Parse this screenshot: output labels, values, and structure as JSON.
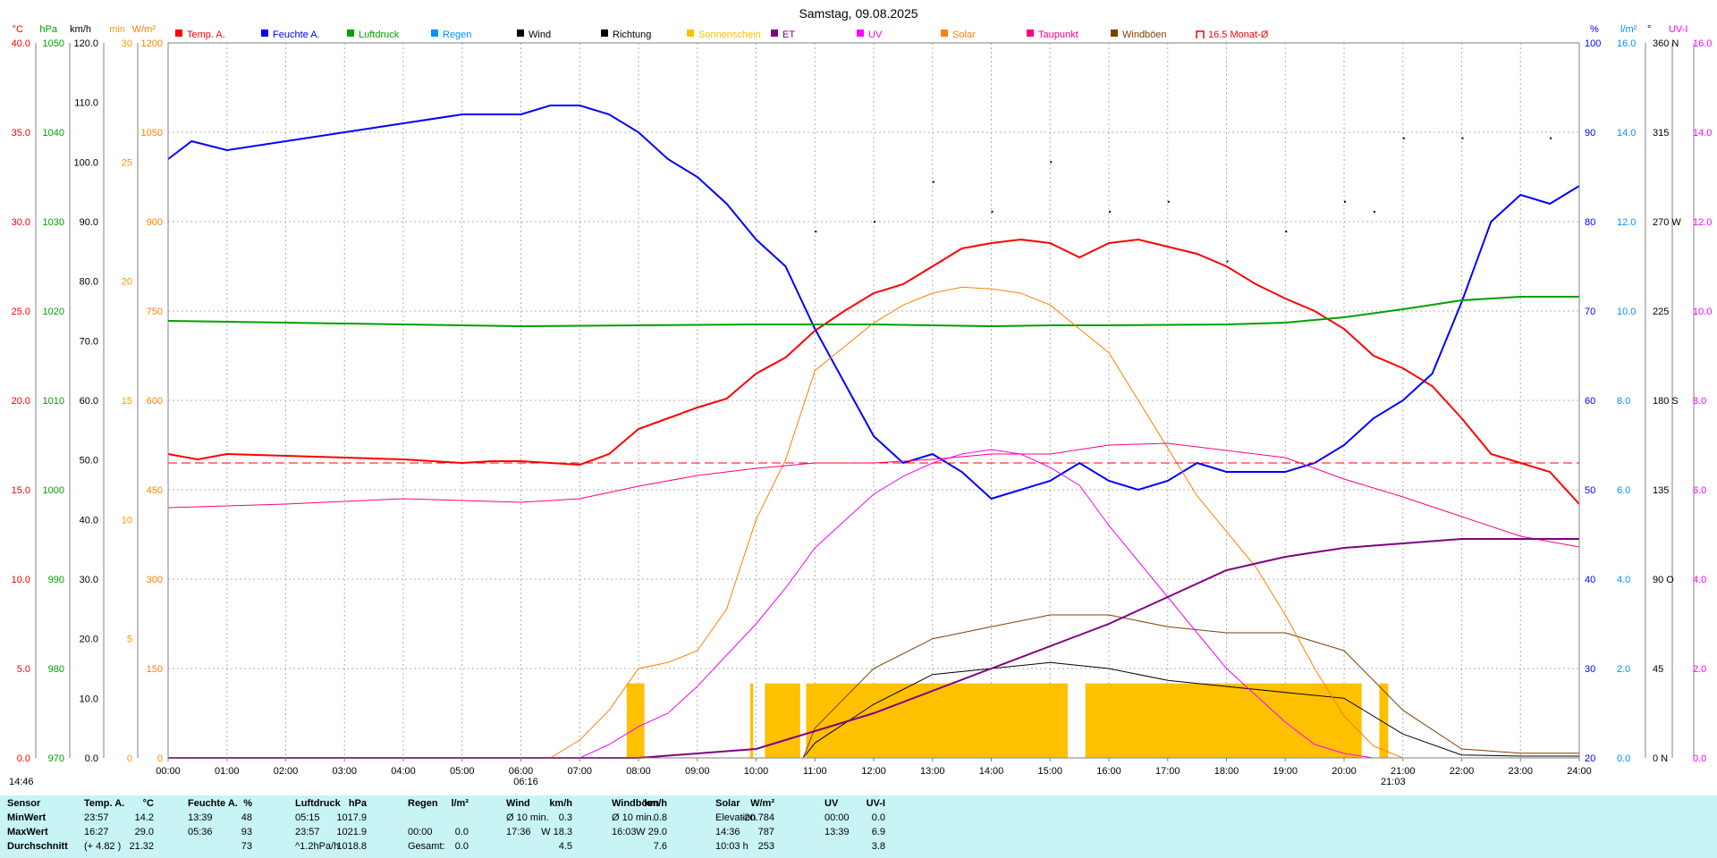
{
  "chart_data": {
    "type": "line",
    "title": "Samstag, 09.08.2025",
    "x_range": [
      "00:00",
      "24:00"
    ],
    "x_ticks": [
      "00:00",
      "01:00",
      "02:00",
      "03:00",
      "04:00",
      "05:00",
      "06:00",
      "07:00",
      "08:00",
      "09:00",
      "10:00",
      "11:00",
      "12:00",
      "13:00",
      "14:00",
      "15:00",
      "16:00",
      "17:00",
      "18:00",
      "19:00",
      "20:00",
      "21:00",
      "22:00",
      "23:00",
      "24:00"
    ],
    "legend": [
      {
        "name": "Temp. A.",
        "color": "#ff0000"
      },
      {
        "name": "Feuchte A.",
        "color": "#0000ff"
      },
      {
        "name": "Luftdruck",
        "color": "#00a000"
      },
      {
        "name": "Regen",
        "color": "#0090ff"
      },
      {
        "name": "Wind",
        "color": "#000000"
      },
      {
        "name": "Richtung",
        "color": "#000000"
      },
      {
        "name": "Sonnenschein",
        "color": "#ffc000"
      },
      {
        "name": "ET",
        "color": "#800080"
      },
      {
        "name": "UV",
        "color": "#ff00ff"
      },
      {
        "name": "Solar",
        "color": "#ff8000"
      },
      {
        "name": "Taupunkt",
        "color": "#ff0080"
      },
      {
        "name": "Windböen",
        "color": "#804000"
      },
      {
        "name": "16.5 Monat-Ø",
        "color": "#ff0000"
      }
    ],
    "left_axes": [
      {
        "unit": "°C",
        "color": "#ff0000",
        "ticks": [
          "40.0",
          "35.0",
          "30.0",
          "25.0",
          "20.0",
          "15.0",
          "10.0",
          "5.0",
          "0.0"
        ]
      },
      {
        "unit": "hPa",
        "color": "#00a000",
        "ticks": [
          "1050",
          "1040",
          "1030",
          "1020",
          "1010",
          "1000",
          "990",
          "980",
          "970"
        ]
      },
      {
        "unit": "km/h",
        "color": "#000000",
        "ticks": [
          "120.0",
          "110.0",
          "100.0",
          "90.0",
          "80.0",
          "70.0",
          "60.0",
          "50.0",
          "40.0",
          "30.0",
          "20.0",
          "10.0",
          "0.0"
        ]
      },
      {
        "unit": "min",
        "color": "#ff9900",
        "ticks": [
          "30",
          "25",
          "20",
          "15",
          "10",
          "5",
          "0"
        ]
      },
      {
        "unit": "W/m²",
        "color": "#ff8000",
        "ticks": [
          "1200",
          "1050",
          "900",
          "750",
          "600",
          "450",
          "300",
          "150",
          "0"
        ]
      }
    ],
    "right_axes": [
      {
        "unit": "%",
        "color": "#0000ff",
        "ticks": [
          "100",
          "90",
          "80",
          "70",
          "60",
          "50",
          "40",
          "30",
          "20"
        ]
      },
      {
        "unit": "l/m²",
        "color": "#0090ff",
        "ticks": [
          "16.0",
          "14.0",
          "12.0",
          "10.0",
          "8.0",
          "6.0",
          "4.0",
          "2.0",
          "0.0"
        ]
      },
      {
        "unit": "°",
        "color": "#000000",
        "ticks": [
          "360 N",
          "315",
          "270 W",
          "225",
          "180 S",
          "135",
          "90 O",
          "45",
          "0 N"
        ]
      },
      {
        "unit": "UV-I",
        "color": "#ff00ff",
        "ticks": [
          "16.0",
          "14.0",
          "12.0",
          "10.0",
          "8.0",
          "6.0",
          "4.0",
          "2.0",
          "0.0"
        ]
      }
    ],
    "series": [
      {
        "name": "Temp. A.",
        "axis": "°C",
        "x": [
          0,
          0.5,
          1,
          2,
          3,
          4,
          5,
          5.5,
          6,
          7,
          7.5,
          8,
          8.5,
          9,
          9.5,
          10,
          10.5,
          11,
          11.5,
          12,
          12.5,
          13,
          13.5,
          14,
          14.5,
          15,
          15.5,
          16,
          16.5,
          17,
          17.5,
          18,
          18.5,
          19,
          19.5,
          20,
          20.5,
          21,
          21.5,
          22,
          22.5,
          23,
          23.5,
          24
        ],
        "y": [
          17.0,
          16.7,
          17.0,
          16.9,
          16.8,
          16.7,
          16.5,
          16.6,
          16.6,
          16.4,
          17.0,
          18.4,
          19.0,
          19.6,
          20.1,
          21.5,
          22.4,
          23.9,
          25.0,
          26.0,
          26.5,
          27.5,
          28.5,
          28.8,
          29.0,
          28.8,
          28.0,
          28.8,
          29.0,
          28.6,
          28.2,
          27.5,
          26.5,
          25.7,
          25.0,
          24.0,
          22.5,
          21.8,
          20.8,
          19.0,
          17.0,
          16.5,
          16.0,
          14.2
        ]
      },
      {
        "name": "Feuchte A.",
        "axis": "%",
        "x": [
          0,
          0.4,
          1,
          2,
          3,
          4,
          5,
          6,
          6.5,
          7,
          7.5,
          8,
          8.5,
          9,
          9.5,
          10,
          10.5,
          11,
          11.5,
          12,
          12.5,
          13,
          13.5,
          14,
          14.5,
          15,
          15.5,
          16,
          16.5,
          17,
          17.5,
          18,
          18.5,
          19,
          19.5,
          20,
          20.5,
          21,
          21.5,
          22,
          22.5,
          23,
          23.5,
          24
        ],
        "y": [
          87,
          89,
          88,
          89,
          90,
          91,
          92,
          92,
          93,
          93,
          92,
          90,
          87,
          85,
          82,
          78,
          75,
          68,
          62,
          56,
          53,
          54,
          52,
          49,
          50,
          51,
          53,
          51,
          50,
          51,
          53,
          52,
          52,
          52,
          53,
          55,
          58,
          60,
          63,
          71,
          80,
          83,
          82,
          84
        ]
      },
      {
        "name": "Luftdruck",
        "axis": "hPa",
        "x": [
          0,
          2,
          4,
          6,
          8,
          10,
          12,
          14,
          15,
          16,
          18,
          19,
          20,
          21,
          22,
          23,
          24
        ],
        "y": [
          1018.9,
          1018.7,
          1018.5,
          1018.3,
          1018.4,
          1018.5,
          1018.5,
          1018.3,
          1018.4,
          1018.4,
          1018.5,
          1018.7,
          1019.3,
          1020.2,
          1021.2,
          1021.6,
          1021.6
        ]
      },
      {
        "name": "Wind",
        "axis": "km/h",
        "x": [
          0,
          10.8,
          11,
          12,
          13,
          14,
          15,
          16,
          17,
          18,
          19,
          20,
          21,
          22,
          23,
          24
        ],
        "y": [
          0.0,
          0.0,
          2.5,
          9.0,
          14.0,
          15.0,
          16.0,
          15.0,
          13.0,
          12.0,
          11.0,
          10.0,
          4.0,
          0.5,
          0.3,
          0.3
        ]
      },
      {
        "name": "Windböen",
        "axis": "km/h",
        "x": [
          0,
          10.8,
          11,
          12,
          13,
          14,
          15,
          16,
          17,
          18,
          19,
          20,
          21,
          22,
          23,
          24
        ],
        "y": [
          0.0,
          0.0,
          5.0,
          15.0,
          20.0,
          22.0,
          24.0,
          24.0,
          22.0,
          21.0,
          21.0,
          18.0,
          8.0,
          1.5,
          0.8,
          0.8
        ]
      },
      {
        "name": "Richtung",
        "axis": "°",
        "x": [
          11,
          12,
          13,
          14,
          15,
          16,
          17,
          18,
          19,
          20,
          20.5,
          21,
          22,
          23.5
        ],
        "y": [
          265,
          270,
          290,
          275,
          300,
          275,
          280,
          250,
          265,
          280,
          275,
          312,
          312,
          312
        ]
      },
      {
        "name": "Solar",
        "axis": "W/m²",
        "x": [
          0,
          6.5,
          7,
          7.5,
          8,
          8.5,
          9,
          9.5,
          10,
          10.5,
          11,
          11.5,
          12,
          12.5,
          13,
          13.5,
          14,
          14.5,
          15,
          15.5,
          16,
          16.5,
          17,
          17.5,
          18,
          18.5,
          19,
          19.5,
          20,
          20.5,
          21,
          24
        ],
        "y": [
          0,
          0,
          30,
          80,
          150,
          160,
          180,
          250,
          400,
          500,
          650,
          690,
          730,
          760,
          780,
          790,
          787,
          780,
          760,
          720,
          680,
          600,
          520,
          440,
          380,
          320,
          240,
          150,
          70,
          20,
          0,
          0
        ]
      },
      {
        "name": "UV",
        "axis": "UV-I",
        "x": [
          0,
          7,
          7.5,
          8,
          8.5,
          9,
          9.5,
          10,
          10.5,
          11,
          11.5,
          12,
          12.5,
          13,
          13.5,
          14,
          14.5,
          15,
          15.5,
          16,
          16.5,
          17,
          17.5,
          18,
          18.5,
          19,
          19.5,
          20,
          20.5,
          24
        ],
        "y": [
          0.0,
          0.0,
          0.3,
          0.7,
          1.0,
          1.6,
          2.3,
          3.0,
          3.8,
          4.7,
          5.3,
          5.9,
          6.3,
          6.6,
          6.8,
          6.9,
          6.8,
          6.5,
          6.1,
          5.2,
          4.4,
          3.6,
          2.8,
          2.0,
          1.4,
          0.8,
          0.3,
          0.1,
          0.0,
          0.0
        ]
      },
      {
        "name": "Taupunkt",
        "axis": "°C",
        "x": [
          0,
          2,
          4,
          6,
          7,
          8,
          9,
          10,
          11,
          12,
          13,
          14,
          15,
          16,
          17,
          18,
          19,
          20,
          21,
          22,
          23,
          24
        ],
        "y": [
          14.0,
          14.2,
          14.5,
          14.3,
          14.5,
          15.2,
          15.8,
          16.2,
          16.5,
          16.5,
          16.7,
          17.0,
          17.0,
          17.5,
          17.6,
          17.2,
          16.8,
          15.6,
          14.6,
          13.5,
          12.4,
          11.8
        ]
      },
      {
        "name": "ET",
        "axis": "l/m²",
        "x": [
          0,
          8,
          9,
          10,
          11,
          12,
          13,
          14,
          15,
          16,
          17,
          18,
          19,
          20,
          21,
          22,
          23,
          24
        ],
        "y": [
          0.0,
          0.0,
          0.1,
          0.2,
          0.6,
          1.0,
          1.5,
          2.0,
          2.5,
          3.0,
          3.6,
          4.2,
          4.5,
          4.7,
          4.8,
          4.9,
          4.9,
          4.9
        ]
      },
      {
        "name": "16.5 Monat-Ø",
        "axis": "°C",
        "x": [
          0,
          24
        ],
        "y": [
          16.5,
          16.5
        ]
      }
    ],
    "sunshine_blocks": [
      [
        7.8,
        8.1
      ],
      [
        9.9,
        9.95
      ],
      [
        10.15,
        10.75
      ],
      [
        10.85,
        15.3
      ],
      [
        15.6,
        20.3
      ],
      [
        20.6,
        20.75
      ]
    ],
    "sunrise": "06:16",
    "sunset": "21:03",
    "bottom_left_time": "14:46"
  },
  "stats": {
    "header": [
      "Sensor",
      "Temp. A.",
      "°C",
      "Feuchte A.",
      "%",
      "Luftdruck",
      "hPa",
      "Regen",
      "l/m²",
      "Wind",
      "km/h",
      "Windböen",
      "km/h",
      "Solar",
      "W/m²",
      "UV",
      "UV-I"
    ],
    "rows": [
      {
        "label": "MinWert",
        "cells": [
          "23:57",
          "14.2",
          "13:39",
          "48",
          "05:15",
          "1017.9",
          "",
          "",
          "Ø 10 min.",
          "0.3",
          "Ø 10 min.",
          "0.8",
          "Elevation",
          "-20.784",
          "00:00",
          "0.0"
        ]
      },
      {
        "label": "MaxWert",
        "cells": [
          "16:27",
          "29.0",
          "05:36",
          "93",
          "23:57",
          "1021.9",
          "00:00",
          "0.0",
          "17:36",
          "W 18.3",
          "16:03",
          "W 29.0",
          "14:36",
          "787",
          "13:39",
          "6.9"
        ]
      },
      {
        "label": "Durchschnitt",
        "cells": [
          "(+ 4.82 )",
          "21.32",
          "",
          "73",
          "^1.2hPa/h",
          "1018.8",
          "Gesamt:",
          "0.0",
          "",
          "4.5",
          "",
          "7.6",
          "10:03 h",
          "253",
          "",
          "3.8"
        ]
      }
    ]
  }
}
